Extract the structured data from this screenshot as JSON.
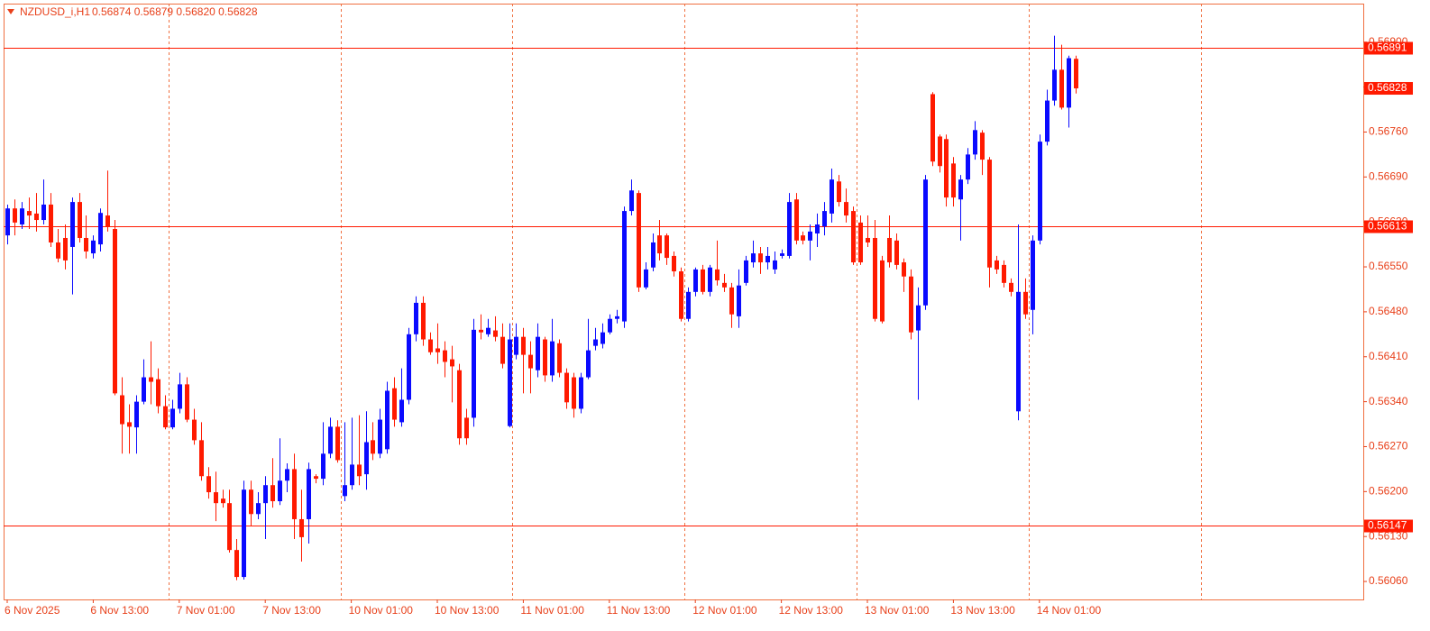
{
  "chart_data": {
    "type": "candlestick",
    "title": "NZDUSD_i,H1",
    "subtitle": "0.56874 0.56879 0.56820 0.56828",
    "up_color": "#0a0aff",
    "down_color": "#ff1a00",
    "level_color": "#ff1a00",
    "grid": true,
    "ylim": [
      0.56032,
      0.5696
    ],
    "yticks": [
      {
        "value": 0.5606,
        "label": "0.56060"
      },
      {
        "value": 0.5613,
        "label": "0.56130"
      },
      {
        "value": 0.562,
        "label": "0.56200"
      },
      {
        "value": 0.5627,
        "label": "0.56270"
      },
      {
        "value": 0.5634,
        "label": "0.56340"
      },
      {
        "value": 0.5641,
        "label": "0.56410"
      },
      {
        "value": 0.5648,
        "label": "0.56480"
      },
      {
        "value": 0.5655,
        "label": "0.56550"
      },
      {
        "value": 0.5662,
        "label": "0.56620"
      },
      {
        "value": 0.5669,
        "label": "0.56690"
      },
      {
        "value": 0.5676,
        "label": "0.56760"
      },
      {
        "value": 0.5683,
        "label": "0.56830"
      },
      {
        "value": 0.569,
        "label": "0.56900"
      }
    ],
    "levels": [
      0.56891,
      0.56613,
      0.56147
    ],
    "categories": [
      "6 Nov 2025",
      null,
      null,
      null,
      null,
      null,
      null,
      null,
      null,
      null,
      null,
      null,
      "6 Nov 13:00",
      null,
      null,
      null,
      null,
      null,
      null,
      null,
      null,
      null,
      null,
      null,
      "7 Nov 01:00",
      null,
      null,
      null,
      null,
      null,
      null,
      null,
      null,
      null,
      null,
      null,
      "7 Nov 13:00",
      null,
      null,
      null,
      null,
      null,
      null,
      null,
      null,
      null,
      null,
      null,
      "10 Nov 01:00",
      null,
      null,
      null,
      null,
      null,
      null,
      null,
      null,
      null,
      null,
      null,
      "10 Nov 13:00",
      null,
      null,
      null,
      null,
      null,
      null,
      null,
      null,
      null,
      null,
      null,
      "11 Nov 01:00",
      null,
      null,
      null,
      null,
      null,
      null,
      null,
      null,
      null,
      null,
      null,
      "11 Nov 13:00",
      null,
      null,
      null,
      null,
      null,
      null,
      null,
      null,
      null,
      null,
      null,
      "12 Nov 01:00",
      null,
      null,
      null,
      null,
      null,
      null,
      null,
      null,
      null,
      null,
      null,
      "12 Nov 13:00",
      null,
      null,
      null,
      null,
      null,
      null,
      null,
      null,
      null,
      null,
      null,
      "13 Nov 01:00",
      null,
      null,
      null,
      null,
      null,
      null,
      null,
      null,
      null,
      null,
      null,
      "13 Nov 13:00",
      null,
      null,
      null,
      null,
      null,
      null,
      null,
      null,
      null,
      null,
      null,
      "14 Nov 01:00",
      null,
      null,
      null,
      null,
      null
    ],
    "open": [
      0.56599,
      0.56641,
      0.56616,
      0.56637,
      0.56633,
      0.56623,
      0.56647,
      0.56588,
      0.56595,
      0.56581,
      0.56651,
      0.56595,
      0.56571,
      0.56585,
      0.5663,
      0.56609,
      0.5635,
      0.56308,
      0.563,
      0.5634,
      0.56378,
      0.56375,
      0.56333,
      0.563,
      0.56329,
      0.56367,
      0.56312,
      0.5628,
      0.56224,
      0.56199,
      0.56189,
      0.56182,
      0.56109,
      0.56067,
      0.56203,
      0.56165,
      0.56182,
      0.5621,
      0.56185,
      0.56217,
      0.56235,
      0.56157,
      0.56157,
      0.56224,
      0.5622,
      0.56259,
      0.56301,
      0.56193,
      0.5621,
      0.56242,
      0.56227,
      0.5628,
      0.56259,
      0.56266,
      0.56361,
      0.56308,
      0.56343,
      0.56445,
      0.56494,
      0.56437,
      0.56423,
      0.5642,
      0.56406,
      0.56389,
      0.56315,
      0.56315,
      0.56452,
      0.56445,
      0.56451,
      0.56441,
      0.56302,
      0.56413,
      0.56441,
      0.56413,
      0.56389,
      0.56437,
      0.56381,
      0.56431,
      0.56385,
      0.56378,
      0.56329,
      0.56378,
      0.56427,
      0.5643,
      0.56448,
      0.56469,
      0.56465,
      0.56637,
      0.56665,
      0.56518,
      0.56549,
      0.56599,
      0.56599,
      0.56567,
      0.56543,
      0.56469,
      0.56511,
      0.56546,
      0.56511,
      0.56546,
      0.56525,
      0.56518,
      0.56473,
      0.56525,
      0.56557,
      0.56571,
      0.56557,
      0.56546,
      0.56567,
      0.56567,
      0.56655,
      0.56599,
      0.56591,
      0.56602,
      0.56613,
      0.56633,
      0.56683,
      0.56651,
      0.56637,
      0.56619,
      0.56595,
      0.56595,
      0.5656,
      0.56595,
      0.56591,
      0.56557,
      0.56535,
      0.56451,
      0.5649,
      0.56819,
      0.56753,
      0.56749,
      0.56711,
      0.56655,
      0.56686,
      0.56725,
      0.56759,
      0.56717,
      0.5656,
      0.56553,
      0.56525,
      0.56325,
      0.56511,
      0.56483,
      0.56591,
      0.56745,
      0.56809,
      0.56857,
      0.56798,
      0.56874
    ],
    "high": [
      0.56647,
      0.56655,
      0.56651,
      0.56658,
      0.56665,
      0.56686,
      0.56665,
      0.56609,
      0.56616,
      0.56658,
      0.56665,
      0.5663,
      0.56599,
      0.56641,
      0.567,
      0.56623,
      0.56378,
      0.56336,
      0.5635,
      0.56406,
      0.56434,
      0.56392,
      0.5635,
      0.56343,
      0.56385,
      0.56378,
      0.56329,
      0.56308,
      0.56238,
      0.56231,
      0.56203,
      0.56203,
      0.56126,
      0.56217,
      0.56217,
      0.56199,
      0.56224,
      0.56252,
      0.56283,
      0.56244,
      0.56259,
      0.56203,
      0.56245,
      0.56227,
      0.56308,
      0.56315,
      0.56311,
      0.56308,
      0.56315,
      0.56319,
      0.56325,
      0.56308,
      0.56329,
      0.56371,
      0.56378,
      0.56392,
      0.56455,
      0.56504,
      0.56504,
      0.56448,
      0.56462,
      0.56434,
      0.56427,
      0.56399,
      0.56329,
      0.56469,
      0.56476,
      0.56469,
      0.56473,
      0.56462,
      0.56462,
      0.56462,
      0.56455,
      0.56434,
      0.56462,
      0.56441,
      0.56469,
      0.56437,
      0.56392,
      0.56385,
      0.56385,
      0.56469,
      0.56455,
      0.56462,
      0.56476,
      0.56483,
      0.56644,
      0.56686,
      0.56669,
      0.56557,
      0.56602,
      0.56623,
      0.56602,
      0.56574,
      0.56549,
      0.56518,
      0.56549,
      0.56553,
      0.56553,
      0.56591,
      0.56539,
      0.56525,
      0.56546,
      0.56567,
      0.56591,
      0.56581,
      0.56581,
      0.56574,
      0.56577,
      0.56665,
      0.56665,
      0.56605,
      0.56616,
      0.56633,
      0.56651,
      0.56703,
      0.56693,
      0.56672,
      0.56644,
      0.5663,
      0.5663,
      0.56623,
      0.56567,
      0.5663,
      0.56602,
      0.56563,
      0.56546,
      0.56518,
      0.56693,
      0.56822,
      0.56756,
      0.56756,
      0.56721,
      0.56693,
      0.56735,
      0.56777,
      0.56763,
      0.56721,
      0.56567,
      0.5656,
      0.56532,
      0.56616,
      0.56532,
      0.56599,
      0.56756,
      0.56826,
      0.5691,
      0.56896,
      0.56879,
      0.56879
    ],
    "low": [
      0.56585,
      0.56599,
      0.56609,
      0.56609,
      0.56605,
      0.56616,
      0.56581,
      0.56557,
      0.56546,
      0.56507,
      0.56588,
      0.56563,
      0.56563,
      0.56574,
      0.56605,
      0.5635,
      0.56259,
      0.56259,
      0.56259,
      0.56336,
      0.56336,
      0.56322,
      0.56297,
      0.56297,
      0.56322,
      0.56308,
      0.56273,
      0.56217,
      0.56189,
      0.56154,
      0.56175,
      0.56105,
      0.56062,
      0.56063,
      0.56147,
      0.56157,
      0.56126,
      0.56175,
      0.56179,
      0.56199,
      0.56126,
      0.56091,
      0.56119,
      0.56213,
      0.5621,
      0.56252,
      0.56245,
      0.56185,
      0.56203,
      0.5621,
      0.56203,
      0.56249,
      0.56252,
      0.56259,
      0.56301,
      0.56301,
      0.56336,
      0.56434,
      0.56427,
      0.56413,
      0.56399,
      0.56378,
      0.56339,
      0.56273,
      0.56273,
      0.56301,
      0.56437,
      0.56441,
      0.56434,
      0.56392,
      0.563,
      0.56406,
      0.56353,
      0.56353,
      0.56378,
      0.56371,
      0.56371,
      0.56378,
      0.56329,
      0.56315,
      0.56322,
      0.56375,
      0.5642,
      0.56423,
      0.56445,
      0.56462,
      0.56455,
      0.5663,
      0.56511,
      0.56515,
      0.56543,
      0.5656,
      0.56553,
      0.56535,
      0.56465,
      0.56465,
      0.56504,
      0.56507,
      0.56504,
      0.56521,
      0.56511,
      0.56455,
      0.56455,
      0.56521,
      0.56549,
      0.56539,
      0.56546,
      0.56539,
      0.56563,
      0.56563,
      0.56585,
      0.56585,
      0.5656,
      0.56581,
      0.56599,
      0.56619,
      0.56644,
      0.56619,
      0.56553,
      0.56553,
      0.56581,
      0.56465,
      0.56462,
      0.56549,
      0.56546,
      0.56511,
      0.56437,
      0.56343,
      0.56483,
      0.56707,
      0.56697,
      0.56644,
      0.56644,
      0.56591,
      0.56679,
      0.56717,
      0.56693,
      0.56518,
      0.56539,
      0.56518,
      0.56504,
      0.56311,
      0.56469,
      0.56445,
      0.56585,
      0.56739,
      0.56801,
      0.56795,
      0.56767,
      0.5682
    ],
    "close": [
      0.56641,
      0.56619,
      0.56641,
      0.5663,
      0.56623,
      0.56647,
      0.56588,
      0.56563,
      0.5656,
      0.56651,
      0.56595,
      0.56574,
      0.56591,
      0.56634,
      0.56613,
      0.56353,
      0.56305,
      0.56301,
      0.5634,
      0.56378,
      0.56371,
      0.56333,
      0.563,
      0.56329,
      0.56367,
      0.56312,
      0.5628,
      0.56224,
      0.56199,
      0.56182,
      0.56182,
      0.56109,
      0.56067,
      0.56203,
      0.56165,
      0.56182,
      0.5621,
      0.56185,
      0.56217,
      0.56235,
      0.56157,
      0.56129,
      0.56235,
      0.5622,
      0.56259,
      0.56301,
      0.56249,
      0.5621,
      0.56242,
      0.56224,
      0.56277,
      0.56259,
      0.56312,
      0.56357,
      0.56312,
      0.56343,
      0.56445,
      0.56494,
      0.56437,
      0.56417,
      0.56417,
      0.56402,
      0.56395,
      0.56283,
      0.56283,
      0.56452,
      0.56448,
      0.56455,
      0.56441,
      0.56399,
      0.56437,
      0.56441,
      0.56413,
      0.56392,
      0.56441,
      0.56381,
      0.56434,
      0.56385,
      0.56339,
      0.56329,
      0.56378,
      0.5642,
      0.56437,
      0.56448,
      0.56469,
      0.56473,
      0.56637,
      0.56669,
      0.56518,
      0.56546,
      0.56588,
      0.56571,
      0.56564,
      0.56543,
      0.56469,
      0.56511,
      0.56546,
      0.56511,
      0.56549,
      0.56529,
      0.56518,
      0.56476,
      0.56521,
      0.5656,
      0.56571,
      0.56557,
      0.56567,
      0.5656,
      0.56571,
      0.56651,
      0.56591,
      0.56591,
      0.56605,
      0.56616,
      0.56637,
      0.56686,
      0.56651,
      0.5663,
      0.56557,
      0.56557,
      0.56588,
      0.56469,
      0.56465,
      0.56557,
      0.56553,
      0.56535,
      0.56448,
      0.5649,
      0.56686,
      0.56714,
      0.56707,
      0.56658,
      0.56658,
      0.56686,
      0.56725,
      0.56763,
      0.56717,
      0.56549,
      0.56546,
      0.56525,
      0.56511,
      0.56511,
      0.56476,
      0.56591,
      0.56745,
      0.56809,
      0.56857,
      0.56798,
      0.56875,
      0.56828
    ]
  }
}
